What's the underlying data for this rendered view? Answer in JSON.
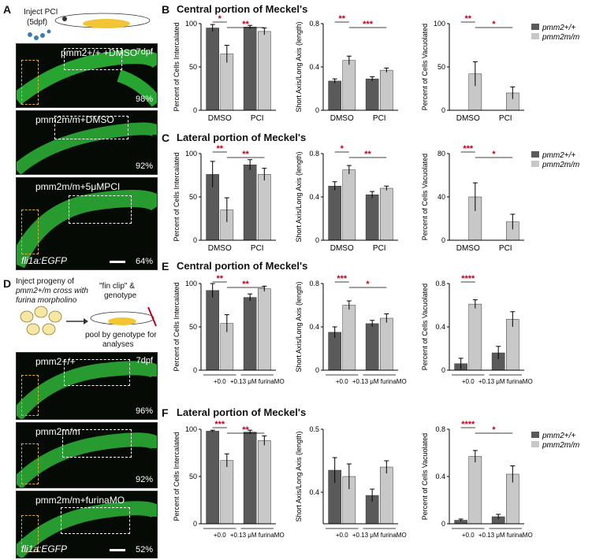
{
  "panels": {
    "A": "A",
    "B": "B",
    "C": "C",
    "D": "D",
    "E": "E",
    "F": "F",
    "B_title": "Central portion of Meckel's",
    "C_title": "Lateral portion of Meckel's",
    "E_title": "Central portion of Meckel's",
    "F_title": "Lateral portion of Meckel's"
  },
  "schematicA": {
    "inject": "Inject PCI",
    "age": "(5dpf)"
  },
  "schematicD": {
    "text1": "Inject progeny of",
    "text2": "pmm2+/m cross with",
    "text3": "furina morpholino",
    "fin1": "\"fin clip\" &",
    "fin2": "genotype",
    "pool1": "pool by genotype for",
    "pool2": "analyses"
  },
  "micrographsA": [
    {
      "label": "pmm2+/+ +DMSO",
      "dpf": "7dpf",
      "pct": "98%"
    },
    {
      "label": "pmm2m/m+DMSO",
      "pct": "92%"
    },
    {
      "label": "pmm2m/m+5μMPCI",
      "pct": "64%",
      "reporter": "fli1a:EGFP"
    }
  ],
  "micrographsD": [
    {
      "label": "pmm2+/+",
      "dpf": "7dpf",
      "pct": "96%"
    },
    {
      "label": "pmm2m/m",
      "pct": "92%"
    },
    {
      "label": "pmm2m/m+furinaMO",
      "pct": "52%",
      "reporter": "fli1a:EGFP"
    }
  ],
  "legend": {
    "wt": "pmm2+/+",
    "mut": "pmm2m/m"
  },
  "colors": {
    "wt": "#5a5a5a",
    "mut": "#c8c8c8",
    "sig": "#c0001a",
    "green": "#2fbf3a"
  },
  "chart_data": [
    {
      "id": "B1",
      "type": "bar",
      "categories": [
        "DMSO",
        "PCI"
      ],
      "ylabel": "Percent of Cells Intercalated",
      "ylim": [
        0,
        100
      ],
      "yticks": [
        0,
        50,
        100
      ],
      "series": [
        {
          "name": "pmm2+/+",
          "values": [
            95,
            96
          ]
        },
        {
          "name": "pmm2m/m",
          "values": [
            65,
            91
          ]
        }
      ],
      "errors": [
        [
          4,
          2
        ],
        [
          10,
          4
        ]
      ],
      "sig": [
        {
          "a": 0,
          "b": 1,
          "t": "*",
          "c": "sig"
        },
        {
          "a": 1,
          "b": 3,
          "t": "**",
          "c": "sig"
        }
      ]
    },
    {
      "id": "B2",
      "type": "bar",
      "categories": [
        "DMSO",
        "PCI"
      ],
      "ylabel": "Short Axis/Long Axis (length)",
      "ylim": [
        0,
        0.8
      ],
      "yticks": [
        0,
        0.4,
        0.8
      ],
      "series": [
        {
          "name": "pmm2+/+",
          "values": [
            0.27,
            0.29
          ]
        },
        {
          "name": "pmm2m/m",
          "values": [
            0.46,
            0.37
          ]
        }
      ],
      "errors": [
        [
          0.02,
          0.02
        ],
        [
          0.04,
          0.02
        ]
      ],
      "sig": [
        {
          "a": 0,
          "b": 1,
          "t": "**",
          "c": "sig"
        },
        {
          "a": 1,
          "b": 3,
          "t": "***",
          "c": "sig"
        }
      ]
    },
    {
      "id": "B3",
      "type": "bar",
      "categories": [
        "DMSO",
        "PCI"
      ],
      "ylabel": "Percent of Cells Vacuolated",
      "ylim": [
        0,
        100
      ],
      "yticks": [
        0,
        50,
        100
      ],
      "series": [
        {
          "name": "pmm2+/+",
          "values": [
            0,
            0
          ]
        },
        {
          "name": "pmm2m/m",
          "values": [
            42,
            20
          ]
        }
      ],
      "errors": [
        [
          0,
          0
        ],
        [
          14,
          7
        ]
      ],
      "sig": [
        {
          "a": 0,
          "b": 1,
          "t": "**",
          "c": "sig"
        },
        {
          "a": 1,
          "b": 3,
          "t": "*",
          "c": "sig"
        }
      ]
    },
    {
      "id": "C1",
      "type": "bar",
      "categories": [
        "DMSO",
        "PCI"
      ],
      "ylabel": "Percent of Cells Intercalated",
      "ylim": [
        0,
        100
      ],
      "yticks": [
        0,
        50,
        100
      ],
      "series": [
        {
          "name": "pmm2+/+",
          "values": [
            76,
            87
          ]
        },
        {
          "name": "pmm2m/m",
          "values": [
            35,
            76
          ]
        }
      ],
      "errors": [
        [
          15,
          6
        ],
        [
          14,
          7
        ]
      ],
      "sig": [
        {
          "a": 0,
          "b": 1,
          "t": "**",
          "c": "sig"
        },
        {
          "a": 1,
          "b": 3,
          "t": "**",
          "c": "sig"
        }
      ]
    },
    {
      "id": "C2",
      "type": "bar",
      "categories": [
        "DMSO",
        "PCI"
      ],
      "ylabel": "Short Axis/Long Axis (length)",
      "ylim": [
        0,
        0.8
      ],
      "yticks": [
        0,
        0.4,
        0.8
      ],
      "series": [
        {
          "name": "pmm2+/+",
          "values": [
            0.5,
            0.42
          ]
        },
        {
          "name": "pmm2m/m",
          "values": [
            0.65,
            0.48
          ]
        }
      ],
      "errors": [
        [
          0.04,
          0.03
        ],
        [
          0.04,
          0.02
        ]
      ],
      "sig": [
        {
          "a": 0,
          "b": 1,
          "t": "*",
          "c": "sig"
        },
        {
          "a": 1,
          "b": 3,
          "t": "**",
          "c": "sig"
        }
      ]
    },
    {
      "id": "C3",
      "type": "bar",
      "categories": [
        "DMSO",
        "PCI"
      ],
      "ylabel": "Percent of Cells Vacuolated",
      "ylim": [
        0,
        80
      ],
      "yticks": [
        0,
        40,
        80
      ],
      "series": [
        {
          "name": "pmm2+/+",
          "values": [
            0,
            0
          ]
        },
        {
          "name": "pmm2m/m",
          "values": [
            40,
            17
          ]
        }
      ],
      "errors": [
        [
          0,
          0
        ],
        [
          13,
          7
        ]
      ],
      "sig": [
        {
          "a": 0,
          "b": 1,
          "t": "***",
          "c": "sig"
        },
        {
          "a": 1,
          "b": 3,
          "t": "*",
          "c": "sig"
        }
      ]
    },
    {
      "id": "E1",
      "type": "bar",
      "categories": [
        "+0.0",
        "+0.13 μM furinaMO"
      ],
      "ylabel": "Percent of Cells Intercalated",
      "ylim": [
        0,
        100
      ],
      "yticks": [
        0,
        50,
        100
      ],
      "series": [
        {
          "name": "pmm2+/+",
          "values": [
            92,
            84
          ]
        },
        {
          "name": "pmm2m/m",
          "values": [
            54,
            94
          ]
        }
      ],
      "errors": [
        [
          8,
          4
        ],
        [
          10,
          3
        ]
      ],
      "sig": [
        {
          "a": 0,
          "b": 1,
          "t": "**",
          "c": "sig"
        },
        {
          "a": 1,
          "b": 3,
          "t": "**",
          "c": "sig"
        }
      ]
    },
    {
      "id": "E2",
      "type": "bar",
      "categories": [
        "+0.0",
        "+0.13 μM furinaMO"
      ],
      "ylabel": "Short Axis/Long Axis (length)",
      "ylim": [
        0,
        0.8
      ],
      "yticks": [
        0,
        0.4,
        0.8
      ],
      "series": [
        {
          "name": "pmm2+/+",
          "values": [
            0.35,
            0.43
          ]
        },
        {
          "name": "pmm2m/m",
          "values": [
            0.6,
            0.48
          ]
        }
      ],
      "errors": [
        [
          0.05,
          0.03
        ],
        [
          0.04,
          0.04
        ]
      ],
      "sig": [
        {
          "a": 0,
          "b": 1,
          "t": "***",
          "c": "sig"
        },
        {
          "a": 1,
          "b": 3,
          "t": "*",
          "c": "sig"
        }
      ]
    },
    {
      "id": "E3",
      "type": "bar",
      "categories": [
        "+0.0",
        "+0.13 μM furinaMO"
      ],
      "ylabel": "Percent of Cells Vacuolated",
      "ylim": [
        0,
        0.8
      ],
      "yticks": [
        0,
        0.4,
        0.8
      ],
      "series": [
        {
          "name": "pmm2+/+",
          "values": [
            0.06,
            0.16
          ]
        },
        {
          "name": "pmm2m/m",
          "values": [
            0.61,
            0.47
          ]
        }
      ],
      "errors": [
        [
          0.05,
          0.06
        ],
        [
          0.04,
          0.07
        ]
      ],
      "sig": [
        {
          "a": 0,
          "b": 1,
          "t": "****",
          "c": "sig"
        }
      ]
    },
    {
      "id": "F1",
      "type": "bar",
      "categories": [
        "+0.0",
        "+0.13 μM furinaMO"
      ],
      "ylabel": "Percent of Cells Intercalated",
      "ylim": [
        0,
        100
      ],
      "yticks": [
        0,
        50,
        100
      ],
      "series": [
        {
          "name": "pmm2+/+",
          "values": [
            98,
            97
          ]
        },
        {
          "name": "pmm2m/m",
          "values": [
            67,
            88
          ]
        }
      ],
      "errors": [
        [
          1,
          2
        ],
        [
          7,
          5
        ]
      ],
      "sig": [
        {
          "a": 0,
          "b": 1,
          "t": "***",
          "c": "sig"
        },
        {
          "a": 1,
          "b": 3,
          "t": "**",
          "c": "sig"
        }
      ]
    },
    {
      "id": "F2",
      "type": "bar",
      "categories": [
        "+0.0",
        "+0.13 μM furinaMO"
      ],
      "ylabel": "Short Axis/Long Axis (length)",
      "ylim": [
        0.35,
        0.5
      ],
      "yticks": [
        0.4,
        0.5
      ],
      "series": [
        {
          "name": "pmm2+/+",
          "values": [
            0.435,
            0.395
          ]
        },
        {
          "name": "pmm2m/m",
          "values": [
            0.425,
            0.44
          ]
        }
      ],
      "errors": [
        [
          0.02,
          0.01
        ],
        [
          0.02,
          0.01
        ]
      ],
      "sig": []
    },
    {
      "id": "F3",
      "type": "bar",
      "categories": [
        "+0.0",
        "+0.13 μM furinaMO"
      ],
      "ylabel": "Percent of Cells Vacuolated",
      "ylim": [
        0,
        0.8
      ],
      "yticks": [
        0,
        0.4,
        0.8
      ],
      "series": [
        {
          "name": "pmm2+/+",
          "values": [
            0.03,
            0.06
          ]
        },
        {
          "name": "pmm2m/m",
          "values": [
            0.57,
            0.42
          ]
        }
      ],
      "errors": [
        [
          0.01,
          0.02
        ],
        [
          0.05,
          0.07
        ]
      ],
      "sig": [
        {
          "a": 0,
          "b": 1,
          "t": "****",
          "c": "sig"
        },
        {
          "a": 1,
          "b": 3,
          "t": "*",
          "c": "sig"
        }
      ]
    }
  ]
}
